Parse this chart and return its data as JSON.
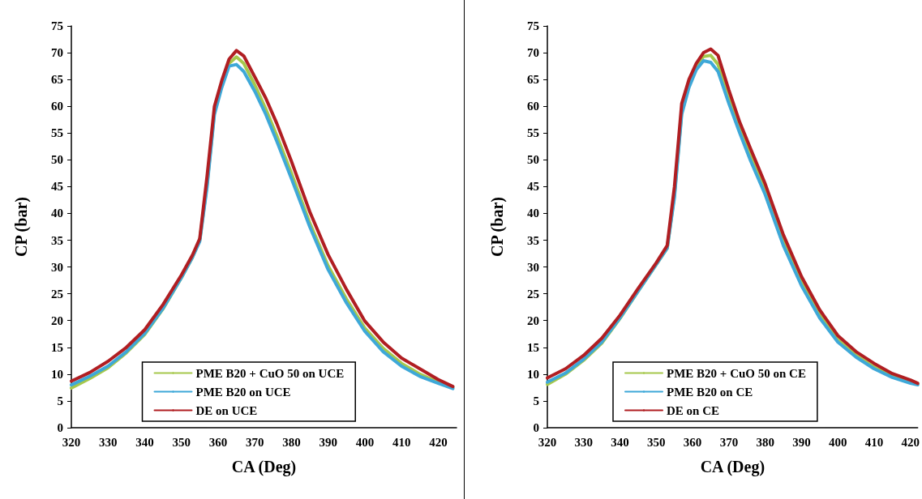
{
  "chart_data": [
    {
      "type": "line",
      "xlabel": "CA (Deg)",
      "ylabel": "CP (bar)",
      "xlim": [
        320,
        425
      ],
      "xticks": [
        320,
        330,
        340,
        350,
        360,
        370,
        380,
        390,
        400,
        410,
        420
      ],
      "ylim": [
        0,
        75
      ],
      "yticks": [
        0,
        5,
        10,
        15,
        20,
        25,
        30,
        35,
        40,
        45,
        50,
        55,
        60,
        65,
        70,
        75
      ],
      "grid": false,
      "legend": "bottom",
      "marker": "none",
      "line_style": "solid",
      "x": [
        320,
        325,
        330,
        335,
        340,
        345,
        350,
        353,
        355,
        357,
        359,
        361,
        363,
        365,
        367,
        370,
        373,
        376,
        380,
        385,
        390,
        395,
        400,
        405,
        410,
        415,
        420,
        424
      ],
      "series": [
        {
          "name": "PME B20 + CuO 50 on UCE",
          "color": "#a6c84c",
          "values": [
            7.4,
            9.2,
            11.2,
            14,
            17.4,
            22.2,
            28,
            31.8,
            35,
            45.5,
            59,
            64,
            68,
            69.2,
            68,
            64,
            59.5,
            54.5,
            47.5,
            38.2,
            30.2,
            24,
            18.6,
            14.8,
            12,
            10,
            8.5,
            7.5
          ]
        },
        {
          "name": "PME B20 on UCE",
          "color": "#3ea8d8",
          "values": [
            8,
            9.6,
            11.5,
            14.2,
            17.6,
            22.3,
            28,
            31.8,
            34.8,
            45,
            58.5,
            63.5,
            67.5,
            67.8,
            66.5,
            62.8,
            58.5,
            53.5,
            46.5,
            37.5,
            29.5,
            23.3,
            18,
            14.2,
            11.5,
            9.6,
            8.3,
            7.3
          ]
        },
        {
          "name": "DE on UCE",
          "color": "#b01e22",
          "values": [
            8.7,
            10.3,
            12.4,
            15,
            18.3,
            23,
            28.5,
            32.2,
            35.3,
            47,
            60,
            64.8,
            68.8,
            70.4,
            69.4,
            65.5,
            61.5,
            56.8,
            49.7,
            40.3,
            32.3,
            25.8,
            19.9,
            16,
            13,
            11,
            9,
            7.7
          ]
        }
      ]
    },
    {
      "type": "line",
      "xlabel": "CA (Deg)",
      "ylabel": "CP (bar)",
      "xlim": [
        320,
        422
      ],
      "xticks": [
        320,
        330,
        340,
        350,
        360,
        370,
        380,
        390,
        400,
        410,
        420
      ],
      "ylim": [
        0,
        75
      ],
      "yticks": [
        0,
        5,
        10,
        15,
        20,
        25,
        30,
        35,
        40,
        45,
        50,
        55,
        60,
        65,
        70,
        75
      ],
      "grid": false,
      "legend": "bottom",
      "marker": "none",
      "line_style": "solid",
      "x": [
        320,
        325,
        330,
        335,
        340,
        345,
        350,
        353,
        355,
        357,
        359,
        361,
        363,
        365,
        367,
        370,
        373,
        376,
        380,
        385,
        390,
        395,
        400,
        405,
        410,
        415,
        420,
        422
      ],
      "series": [
        {
          "name": "PME B20 + CuO 50 on CE",
          "color": "#a6c84c",
          "values": [
            8.1,
            10,
            12.6,
            15.8,
            20.4,
            25.5,
            30.5,
            33.5,
            43.5,
            59,
            64,
            67.5,
            69.3,
            69.5,
            67.8,
            61.8,
            56,
            50.8,
            44.2,
            34.8,
            27.2,
            21,
            16.4,
            13.5,
            11.3,
            9.6,
            8.5,
            8.1
          ]
        },
        {
          "name": "PME B20 on CE",
          "color": "#3ea8d8",
          "values": [
            8.5,
            10.2,
            12.8,
            16,
            20.5,
            25.5,
            30.5,
            33.5,
            43,
            58.5,
            63.5,
            66.8,
            68.5,
            68.2,
            66.5,
            60.5,
            55,
            49.8,
            43.5,
            34,
            26.5,
            20.5,
            16,
            13.2,
            11,
            9.4,
            8.3,
            8
          ]
        },
        {
          "name": "DE on CE",
          "color": "#b01e22",
          "values": [
            9.3,
            11,
            13.5,
            16.7,
            21,
            26,
            30.8,
            34,
            45,
            60.5,
            65,
            68,
            70,
            70.7,
            69.5,
            63,
            57,
            52,
            45.5,
            36,
            28.2,
            22,
            17.2,
            14.2,
            12,
            10.1,
            8.9,
            8.3
          ]
        }
      ]
    }
  ]
}
